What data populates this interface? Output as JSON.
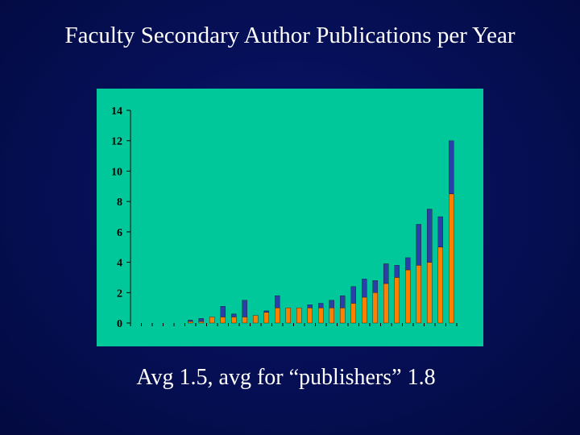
{
  "slide": {
    "title": "Faculty Secondary Author Publications per Year",
    "caption": "Avg 1.5, avg for “publishers” 1.8"
  },
  "colors": {
    "background": "#061058",
    "plot_area": "#00c89a",
    "series_lower": "#ff7f00",
    "series_upper": "#2b3fa8",
    "text": "#ffffff"
  },
  "chart_data": {
    "type": "bar",
    "stacked": true,
    "title": "",
    "xlabel": "",
    "ylabel": "",
    "ylim": [
      0,
      14
    ],
    "yticks": [
      0,
      2,
      4,
      6,
      8,
      10,
      12,
      14
    ],
    "grid": false,
    "legend": "none",
    "series": [
      {
        "values": [
          0,
          0,
          0,
          0,
          0,
          0.1,
          0.1,
          0.4,
          0.4,
          0.4,
          0.4,
          0.5,
          0.7,
          1.0,
          1.0,
          1.0,
          1.0,
          1.0,
          1.0,
          1.0,
          1.3,
          1.7,
          2.0,
          2.6,
          3.0,
          3.5,
          3.8,
          4.0,
          5.0,
          8.5
        ]
      },
      {
        "values": [
          0,
          0,
          0,
          0,
          0,
          0.1,
          0.2,
          0,
          0.7,
          0.2,
          1.1,
          0,
          0.1,
          0.8,
          0,
          0,
          0.2,
          0.3,
          0.5,
          0.8,
          1.1,
          1.2,
          0.8,
          1.3,
          0.8,
          0.8,
          2.7,
          3.5,
          2.0,
          3.5
        ]
      }
    ]
  }
}
